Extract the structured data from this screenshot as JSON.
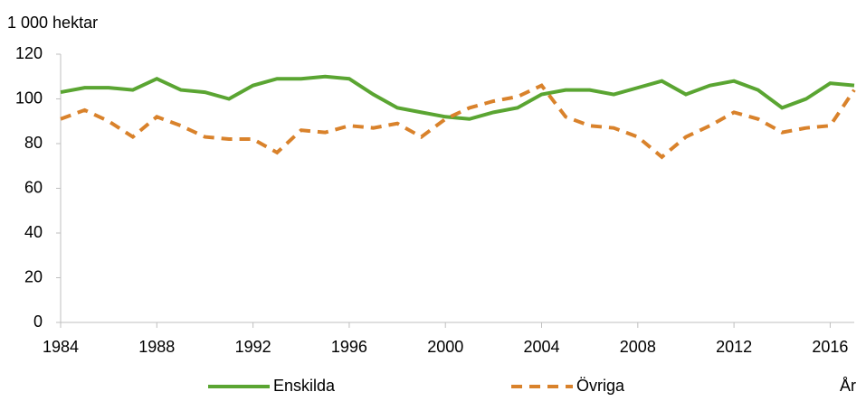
{
  "chart_data": {
    "type": "line",
    "y_label": "1 000 hektar",
    "x_label": "År",
    "x": [
      1984,
      1985,
      1986,
      1987,
      1988,
      1989,
      1990,
      1991,
      1992,
      1993,
      1994,
      1995,
      1996,
      1997,
      1998,
      1999,
      2000,
      2001,
      2002,
      2003,
      2004,
      2005,
      2006,
      2007,
      2008,
      2009,
      2010,
      2011,
      2012,
      2013,
      2014,
      2015,
      2016,
      2017
    ],
    "series": [
      {
        "name": "Enskilda",
        "color": "#5aa532",
        "style": "solid",
        "values": [
          103,
          105,
          105,
          104,
          109,
          104,
          103,
          100,
          106,
          109,
          109,
          110,
          109,
          102,
          96,
          94,
          92,
          91,
          94,
          96,
          102,
          104,
          104,
          102,
          105,
          108,
          102,
          106,
          108,
          104,
          96,
          100,
          107,
          106
        ]
      },
      {
        "name": "Övriga",
        "color": "#d9822b",
        "style": "dashed",
        "values": [
          91,
          95,
          90,
          83,
          92,
          88,
          83,
          82,
          82,
          76,
          86,
          85,
          88,
          87,
          89,
          83,
          91,
          96,
          99,
          101,
          106,
          92,
          88,
          87,
          83,
          74,
          83,
          88,
          94,
          91,
          85,
          87,
          88,
          104
        ]
      }
    ],
    "xlim": [
      1984,
      2017
    ],
    "xticks": [
      1984,
      1988,
      1992,
      1996,
      2000,
      2004,
      2008,
      2012,
      2016
    ],
    "ylim": [
      0,
      120
    ],
    "yticks": [
      0,
      20,
      40,
      60,
      80,
      100,
      120
    ],
    "grid": false,
    "legend": "bottom"
  }
}
